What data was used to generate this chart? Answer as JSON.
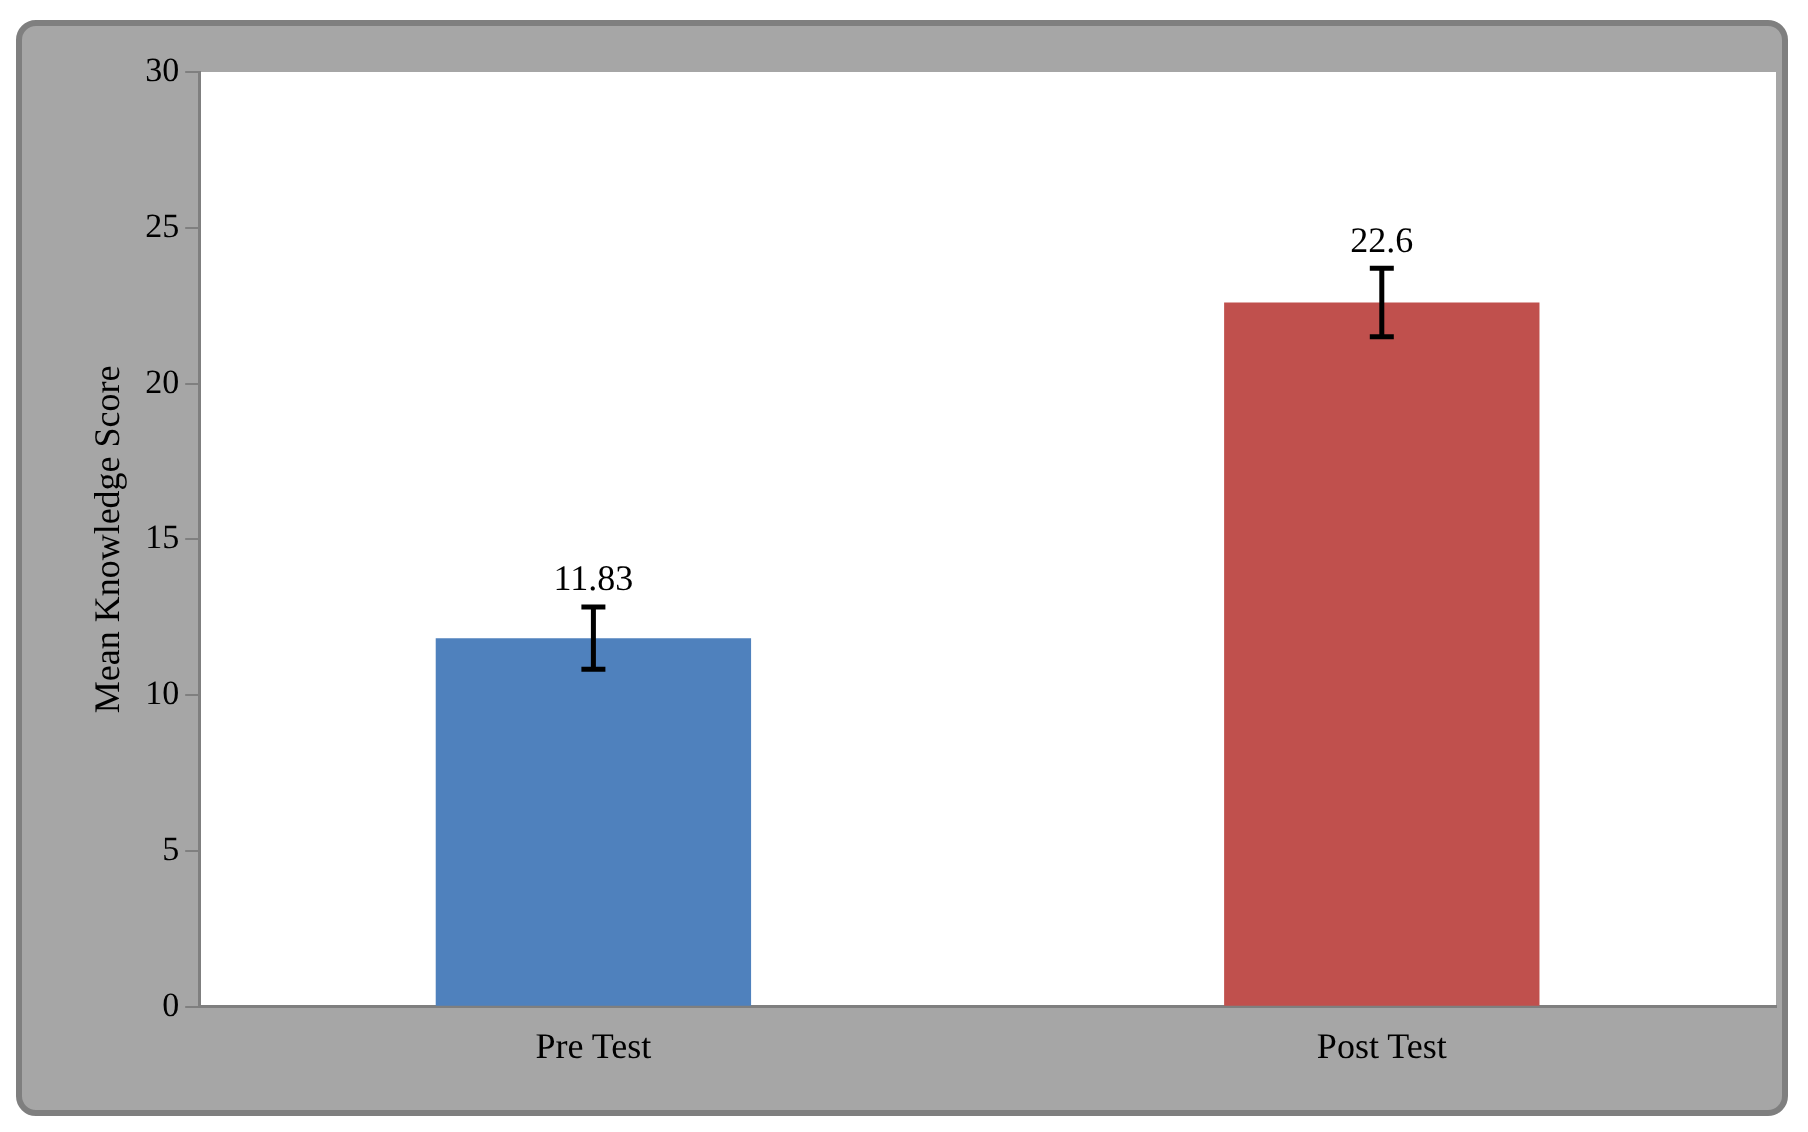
{
  "chart_data": {
    "type": "bar",
    "categories": [
      "Pre Test",
      "Post Test"
    ],
    "values": [
      11.83,
      22.6
    ],
    "colors": [
      "#4f81bd",
      "#c0504d"
    ],
    "errors": [
      1,
      1.1
    ],
    "ylabel": "Mean Knowledge Score",
    "ylim": [
      0,
      30
    ],
    "yticks": [
      0,
      5,
      10,
      15,
      20,
      25,
      30
    ],
    "data_labels": true,
    "grid": false,
    "legend": false
  }
}
